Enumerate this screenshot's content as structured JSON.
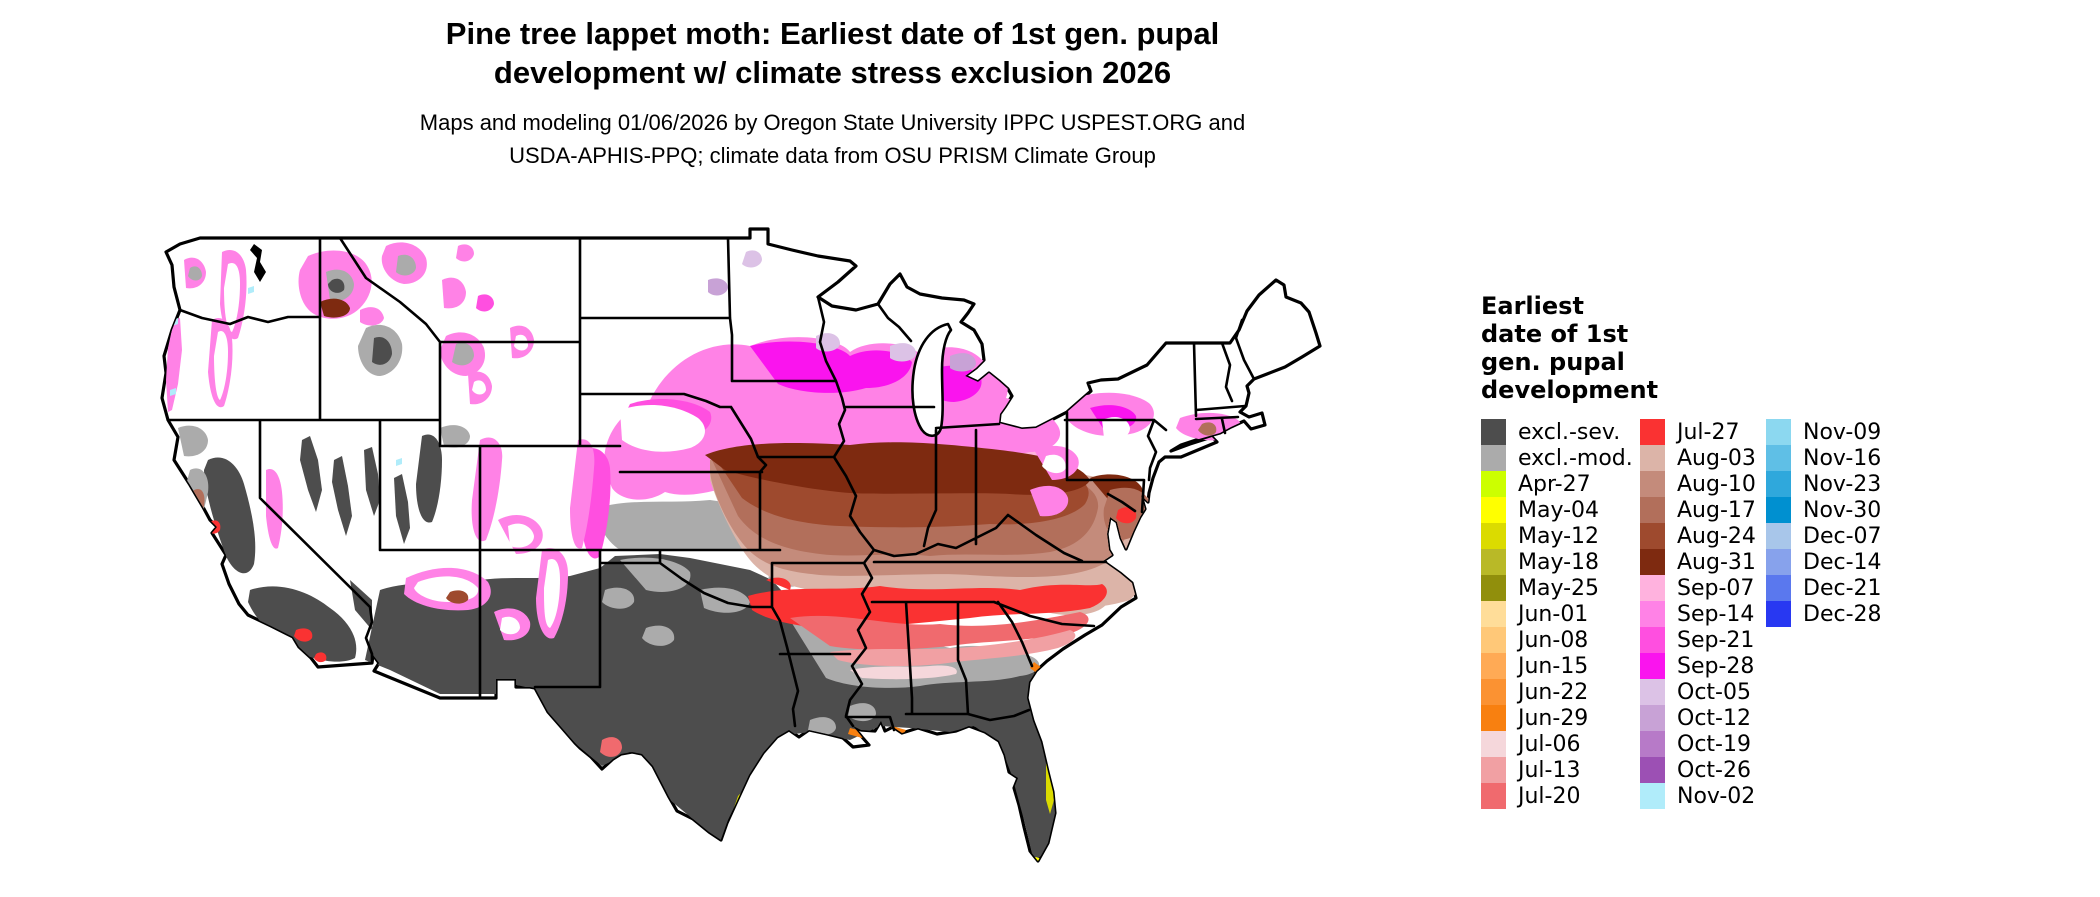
{
  "header": {
    "title_line1": "Pine tree lappet moth: Earliest date of 1st gen. pupal",
    "title_line2": "development w/ climate stress exclusion 2026",
    "subtitle_line1": "Maps and modeling 01/06/2026 by Oregon State University IPPC USPEST.ORG and",
    "subtitle_line2": "USDA-APHIS-PPQ; climate data from OSU PRISM Climate Group"
  },
  "legend": {
    "title_lines": [
      "Earliest",
      "date of 1st",
      "gen. pupal",
      "development"
    ],
    "columns": [
      [
        {
          "label": "excl.-sev.",
          "key": "excl_sev"
        },
        {
          "label": "excl.-mod.",
          "key": "excl_mod"
        },
        {
          "label": "Apr-27",
          "key": "apr27"
        },
        {
          "label": "May-04",
          "key": "may04"
        },
        {
          "label": "May-12",
          "key": "may12"
        },
        {
          "label": "May-18",
          "key": "may18"
        },
        {
          "label": "May-25",
          "key": "may25"
        },
        {
          "label": "Jun-01",
          "key": "jun01"
        },
        {
          "label": "Jun-08",
          "key": "jun08"
        },
        {
          "label": "Jun-15",
          "key": "jun15"
        },
        {
          "label": "Jun-22",
          "key": "jun22"
        },
        {
          "label": "Jun-29",
          "key": "jun29"
        },
        {
          "label": "Jul-06",
          "key": "jul06"
        },
        {
          "label": "Jul-13",
          "key": "jul13"
        },
        {
          "label": "Jul-20",
          "key": "jul20"
        }
      ],
      [
        {
          "label": "Jul-27",
          "key": "jul27"
        },
        {
          "label": "Aug-03",
          "key": "aug03"
        },
        {
          "label": "Aug-10",
          "key": "aug10"
        },
        {
          "label": "Aug-17",
          "key": "aug17"
        },
        {
          "label": "Aug-24",
          "key": "aug24"
        },
        {
          "label": "Aug-31",
          "key": "aug31"
        },
        {
          "label": "Sep-07",
          "key": "sep07"
        },
        {
          "label": "Sep-14",
          "key": "sep14"
        },
        {
          "label": "Sep-21",
          "key": "sep21"
        },
        {
          "label": "Sep-28",
          "key": "sep28"
        },
        {
          "label": "Oct-05",
          "key": "oct05"
        },
        {
          "label": "Oct-12",
          "key": "oct12"
        },
        {
          "label": "Oct-19",
          "key": "oct19"
        },
        {
          "label": "Oct-26",
          "key": "oct26"
        },
        {
          "label": "Nov-02",
          "key": "nov02"
        }
      ],
      [
        {
          "label": "Nov-09",
          "key": "nov09"
        },
        {
          "label": "Nov-16",
          "key": "nov16"
        },
        {
          "label": "Nov-23",
          "key": "nov23"
        },
        {
          "label": "Nov-30",
          "key": "nov30"
        },
        {
          "label": "Dec-07",
          "key": "dec07"
        },
        {
          "label": "Dec-14",
          "key": "dec14"
        },
        {
          "label": "Dec-21",
          "key": "dec21"
        },
        {
          "label": "Dec-28",
          "key": "dec28"
        }
      ]
    ]
  },
  "palette": {
    "excl_sev": "#4D4D4D",
    "excl_mod": "#ABABAB",
    "apr27": "#CCFF00",
    "may04": "#FFFF00",
    "may12": "#DBDB00",
    "may18": "#B9B927",
    "may25": "#918F0C",
    "jun01": "#FFDD99",
    "jun08": "#FFC878",
    "jun15": "#FFAA55",
    "jun22": "#FB9232",
    "jun29": "#F88010",
    "jul06": "#F5D7DB",
    "jul13": "#F1A0A3",
    "jul20": "#F06A6E",
    "jul27": "#FA3232",
    "aug03": "#DCB4A8",
    "aug10": "#C48B7B",
    "aug17": "#B26F5B",
    "aug24": "#9E4A2E",
    "aug31": "#7E2A10",
    "sep07": "#FFB2DE",
    "sep14": "#FF82E6",
    "sep21": "#FF4FE0",
    "sep28": "#FA14EE",
    "oct05": "#DCC2E6",
    "oct12": "#C8A2D6",
    "oct19": "#B77AC8",
    "oct26": "#9C50B4",
    "nov02": "#B0ECFA",
    "nov09": "#8CD8F0",
    "nov16": "#5FBFE6",
    "nov23": "#2FA8DC",
    "nov30": "#0090D0",
    "dec07": "#A8C6EA",
    "dec14": "#87A2EC",
    "dec21": "#5A78EE",
    "dec28": "#2838F2"
  },
  "map": {
    "outline_color": "#000000",
    "no_data_fill": "#FFFFFF"
  }
}
